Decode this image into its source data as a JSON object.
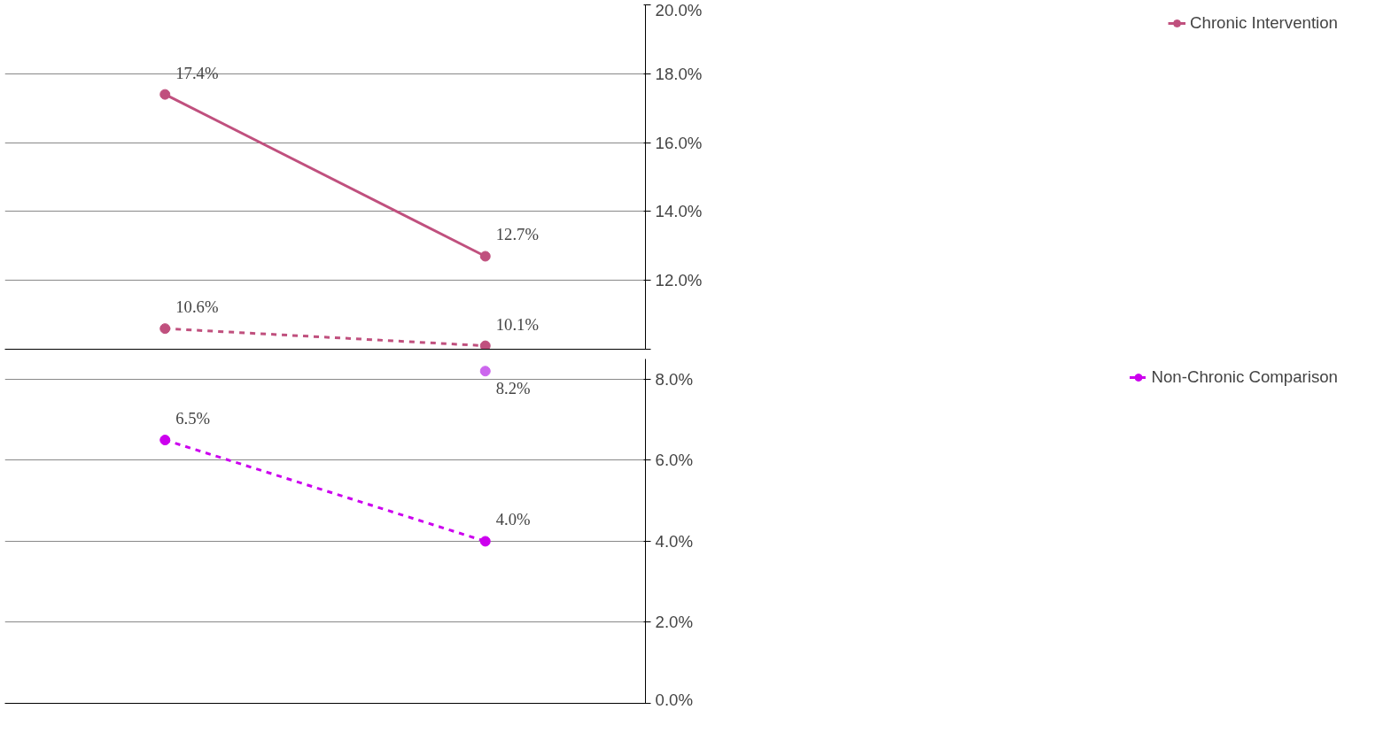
{
  "chart_data": [
    {
      "type": "line",
      "categories": [
        null,
        null
      ],
      "ylim": [
        10,
        20
      ],
      "yticks": [
        {
          "value": 10,
          "label": null
        },
        {
          "value": 12,
          "label": "12.0%"
        },
        {
          "value": 14,
          "label": "14.0%"
        },
        {
          "value": 16,
          "label": "16.0%"
        },
        {
          "value": 18,
          "label": "18.0%"
        },
        {
          "value": 20,
          "label": "20.0%"
        }
      ],
      "grid": "y",
      "legend": "right",
      "marker": "circle",
      "series": [
        {
          "name": "Chronic Intervention",
          "color": "#c0507e",
          "values": [
            17.4,
            12.7
          ],
          "value_labels": [
            "17.4%",
            "12.7%"
          ],
          "line_style": "solid"
        },
        {
          "color": "#c0507e",
          "values": [
            10.6,
            10.1
          ],
          "value_labels": [
            "10.6%",
            "10.1%"
          ],
          "line_style": "dashed"
        }
      ]
    },
    {
      "type": "line",
      "categories": [
        null,
        null
      ],
      "ylim": [
        0,
        8.5
      ],
      "yticks": [
        {
          "value": 0,
          "label": "0.0%"
        },
        {
          "value": 2,
          "label": "2.0%"
        },
        {
          "value": 4,
          "label": "4.0%"
        },
        {
          "value": 6,
          "label": "6.0%"
        },
        {
          "value": 8,
          "label": "8.0%"
        }
      ],
      "grid": "y",
      "legend": "right",
      "marker": "circle",
      "series": [
        {
          "name": "Non-Chronic Comparison",
          "color": "#cc00ee",
          "values": [
            6.5,
            4.0
          ],
          "value_labels": [
            "6.5%",
            "4.0%"
          ],
          "line_style": "dashed"
        },
        {
          "color": "#cc66ee",
          "values": [
            null,
            8.2
          ],
          "value_labels": [
            null,
            "8.2%"
          ],
          "line_style": "dotted"
        }
      ]
    }
  ]
}
